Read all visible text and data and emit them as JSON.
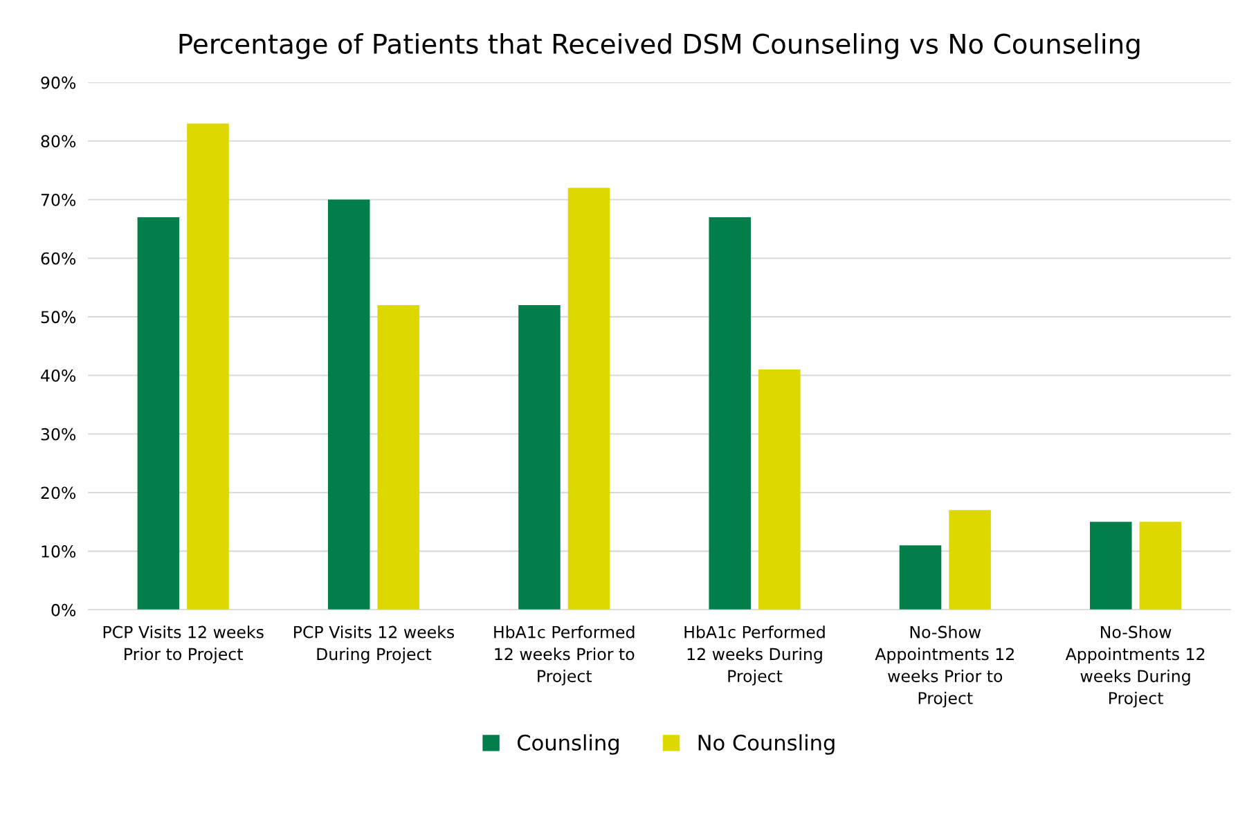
{
  "chart_data": {
    "type": "bar",
    "title": "Percentage of Patients that Received DSM Counseling vs No Counseling",
    "categories": [
      "PCP Visits 12 weeks Prior to Project",
      "PCP Visits 12 weeks During Project",
      "HbA1c Performed 12 weeks Prior to Project",
      "HbA1c Performed 12 weeks During Project",
      "No-Show Appointments 12 weeks Prior to Project",
      "No-Show Appointments 12 weeks During Project"
    ],
    "series": [
      {
        "name": "Counsling",
        "color": "#007f4a",
        "values": [
          67,
          70,
          52,
          67,
          11,
          15
        ]
      },
      {
        "name": "No Counsling",
        "color": "#dcd800",
        "values": [
          83,
          52,
          72,
          41,
          17,
          15
        ]
      }
    ],
    "ylim": [
      0,
      90
    ],
    "yticks": [
      {
        "value": 0,
        "label": "0%"
      },
      {
        "value": 10,
        "label": "10%"
      },
      {
        "value": 20,
        "label": "20%"
      },
      {
        "value": 30,
        "label": "30%"
      },
      {
        "value": 40,
        "label": "40%"
      },
      {
        "value": 50,
        "label": "50%"
      },
      {
        "value": 60,
        "label": "60%"
      },
      {
        "value": 70,
        "label": "70%"
      },
      {
        "value": 80,
        "label": "80%"
      },
      {
        "value": 90,
        "label": "90%"
      }
    ],
    "grid": "y",
    "legend": "bottom"
  }
}
